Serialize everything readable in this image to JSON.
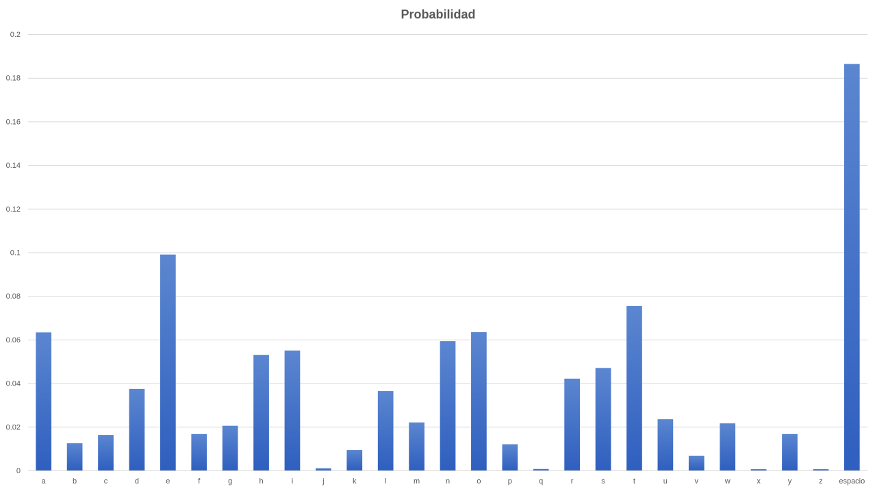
{
  "chart_data": {
    "type": "bar",
    "title": "Probabilidad",
    "xlabel": "",
    "ylabel": "",
    "ylim": [
      0,
      0.2
    ],
    "yticks": [
      0,
      0.02,
      0.04,
      0.06,
      0.08,
      0.1,
      0.12,
      0.14,
      0.16,
      0.18,
      0.2
    ],
    "ytick_labels": [
      "0",
      "0.02",
      "0.04",
      "0.06",
      "0.08",
      "0.1",
      "0.12",
      "0.14",
      "0.16",
      "0.18",
      "0.2"
    ],
    "grid": true,
    "legend": "none",
    "bar_color_top": "#5b86d0",
    "bar_color_bottom": "#2f5fbf",
    "categories": [
      "a",
      "b",
      "c",
      "d",
      "e",
      "f",
      "g",
      "h",
      "i",
      "j",
      "k",
      "l",
      "m",
      "n",
      "o",
      "p",
      "q",
      "r",
      "s",
      "t",
      "u",
      "v",
      "w",
      "x",
      "y",
      "z",
      "espacio"
    ],
    "values": [
      0.0633,
      0.0125,
      0.0163,
      0.0374,
      0.099,
      0.0167,
      0.0205,
      0.053,
      0.055,
      0.001,
      0.0094,
      0.0364,
      0.022,
      0.0593,
      0.0634,
      0.012,
      0.0007,
      0.0421,
      0.047,
      0.0754,
      0.0235,
      0.0067,
      0.0216,
      0.0006,
      0.0167,
      0.0006,
      0.1864
    ]
  }
}
